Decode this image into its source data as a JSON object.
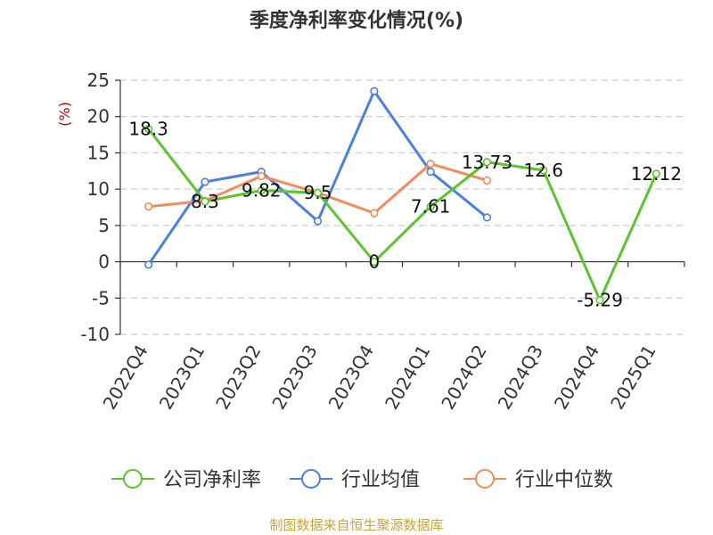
{
  "chart_data": {
    "type": "line",
    "title": "季度净利率变化情况(%)",
    "ylabel": "(%)",
    "categories": [
      "2022Q4",
      "2023Q1",
      "2023Q2",
      "2023Q3",
      "2023Q4",
      "2024Q1",
      "2024Q2",
      "2024Q3",
      "2024Q4",
      "2025Q1"
    ],
    "yticks": [
      25,
      20,
      15,
      10,
      5,
      0,
      -5,
      -10
    ],
    "ylim": [
      -10,
      25
    ],
    "grid": true,
    "legend_position": "bottom",
    "series": [
      {
        "name": "公司净利率",
        "color": "#5cc42e",
        "values": [
          18.3,
          8.3,
          9.82,
          9.5,
          0,
          7.61,
          13.73,
          12.6,
          -5.29,
          12.12
        ],
        "labels": [
          "18.3",
          "8.3",
          "9.82",
          "9.5",
          "0",
          "7.61",
          "13.73",
          "12.6",
          "-5.29",
          "12.12"
        ]
      },
      {
        "name": "行业均值",
        "color": "#4c7fe0",
        "values": [
          -0.4,
          11.0,
          12.4,
          5.6,
          23.5,
          12.4,
          6.1,
          null,
          null,
          null
        ]
      },
      {
        "name": "行业中位数",
        "color": "#f28c5c",
        "values": [
          7.6,
          8.4,
          11.8,
          9.5,
          6.7,
          13.5,
          11.2,
          null,
          null,
          null
        ]
      }
    ]
  },
  "source_text": "制图数据来自恒生聚源数据库"
}
